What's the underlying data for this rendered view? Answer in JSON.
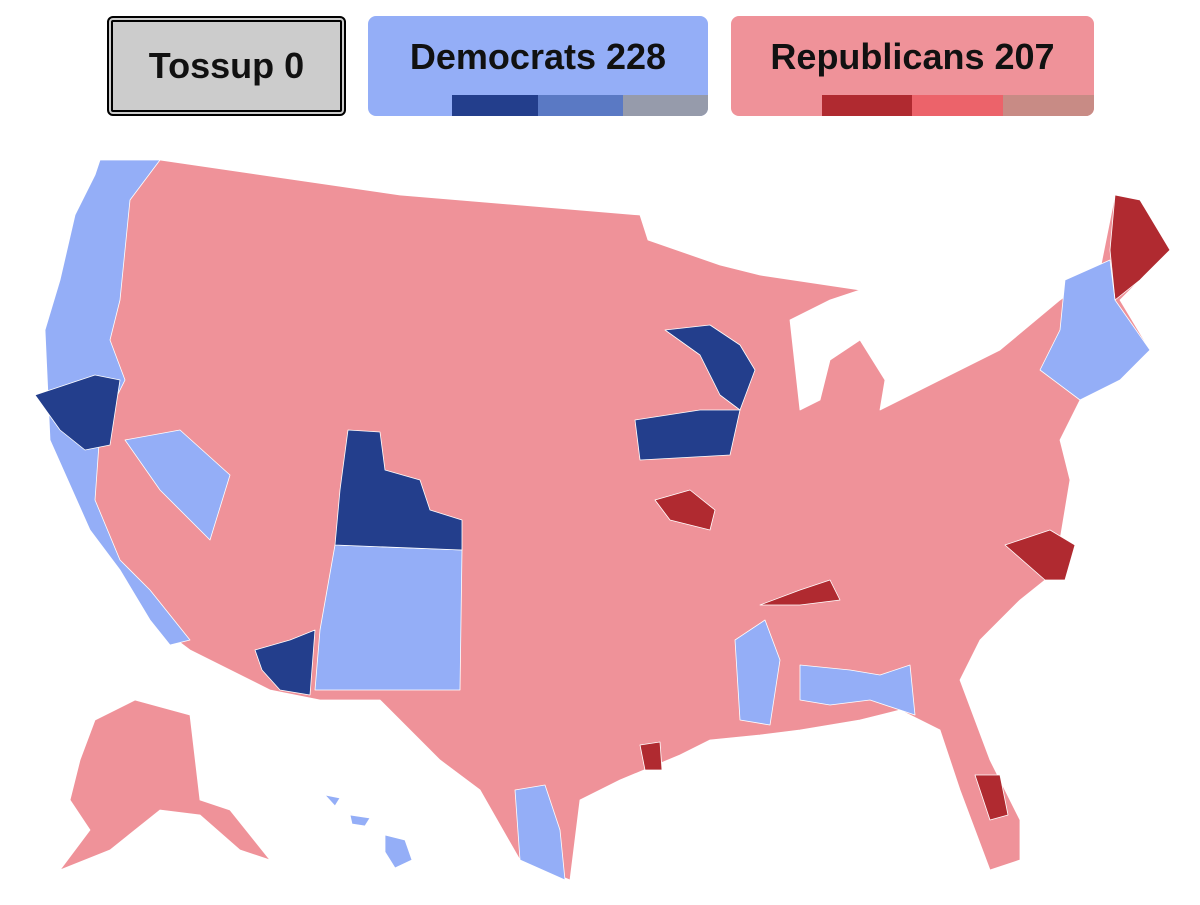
{
  "tossup": {
    "label": "Tossup",
    "count": "0"
  },
  "democrats": {
    "label": "Democrats",
    "count": "228"
  },
  "republicans": {
    "label": "Republicans",
    "count": "207"
  }
}
